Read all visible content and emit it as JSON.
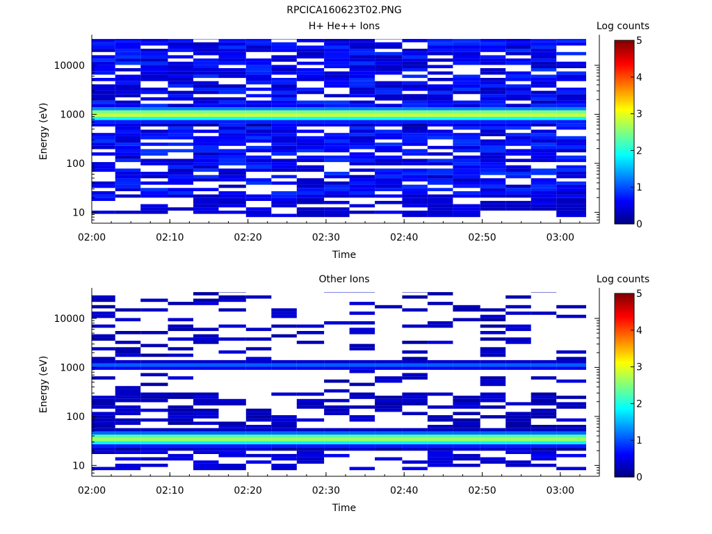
{
  "figure": {
    "title": "RPCICA160623T02.PNG",
    "panels": [
      {
        "title": "H+ He++ Ions",
        "xlabel": "Time",
        "ylabel": "Energy (eV)",
        "cbar_label": "Log counts"
      },
      {
        "title": "Other Ions",
        "xlabel": "Time",
        "ylabel": "Energy (eV)",
        "cbar_label": "Log counts"
      }
    ]
  },
  "chart_data": [
    {
      "type": "heatmap",
      "title": "H+ He++ Ions",
      "xlabel": "Time",
      "ylabel": "Energy (eV)",
      "x_ticks": [
        "02:00",
        "02:10",
        "02:20",
        "02:30",
        "02:40",
        "02:50",
        "03:00"
      ],
      "y_ticks": [
        "10",
        "100",
        "1000",
        "10000"
      ],
      "y_scale": "log",
      "ylim": [
        6,
        42000
      ],
      "colorbar": {
        "label": "Log counts",
        "min": 0,
        "max": 5,
        "ticks": [
          "0",
          "1",
          "2",
          "3",
          "4",
          "5"
        ],
        "colormap": "jet"
      },
      "time_columns": [
        "02:01.5",
        "02:04.5",
        "02:08.0",
        "02:11.5",
        "02:14.5",
        "02:18.0",
        "02:21.5",
        "02:24.5",
        "02:28.0",
        "02:31.5",
        "02:34.5",
        "02:38.0",
        "02:41.5",
        "02:44.5",
        "02:48.0",
        "02:51.5",
        "02:54.5",
        "02:58.0",
        "03:01.0"
      ],
      "band_peak": {
        "energy_eV": 1000,
        "log_counts": 2.9
      },
      "background_log_counts": 0.6,
      "lowest_energy_eV": 10
    },
    {
      "type": "heatmap",
      "title": "Other Ions",
      "xlabel": "Time",
      "ylabel": "Energy (eV)",
      "x_ticks": [
        "02:00",
        "02:10",
        "02:20",
        "02:30",
        "02:40",
        "02:50",
        "03:00"
      ],
      "y_ticks": [
        "10",
        "100",
        "1000",
        "10000"
      ],
      "y_scale": "log",
      "ylim": [
        6,
        42000
      ],
      "colorbar": {
        "label": "Log counts",
        "min": 0,
        "max": 5,
        "ticks": [
          "0",
          "1",
          "2",
          "3",
          "4",
          "5"
        ],
        "colormap": "jet"
      },
      "time_columns": [
        "02:01.5",
        "02:04.5",
        "02:08.0",
        "02:11.5",
        "02:14.5",
        "02:18.0",
        "02:21.5",
        "02:24.5",
        "02:28.0",
        "02:31.5",
        "02:34.5",
        "02:38.0",
        "02:41.5",
        "02:44.5",
        "02:48.0",
        "02:51.5",
        "02:54.5",
        "02:58.0",
        "03:01.0"
      ],
      "band_peak": {
        "energy_eV": 35,
        "log_counts": 2.7
      },
      "secondary_band": {
        "energy_eV": 1100,
        "log_counts": 1.1
      },
      "background_log_counts": 0.3,
      "lowest_energy_eV": 10
    }
  ]
}
